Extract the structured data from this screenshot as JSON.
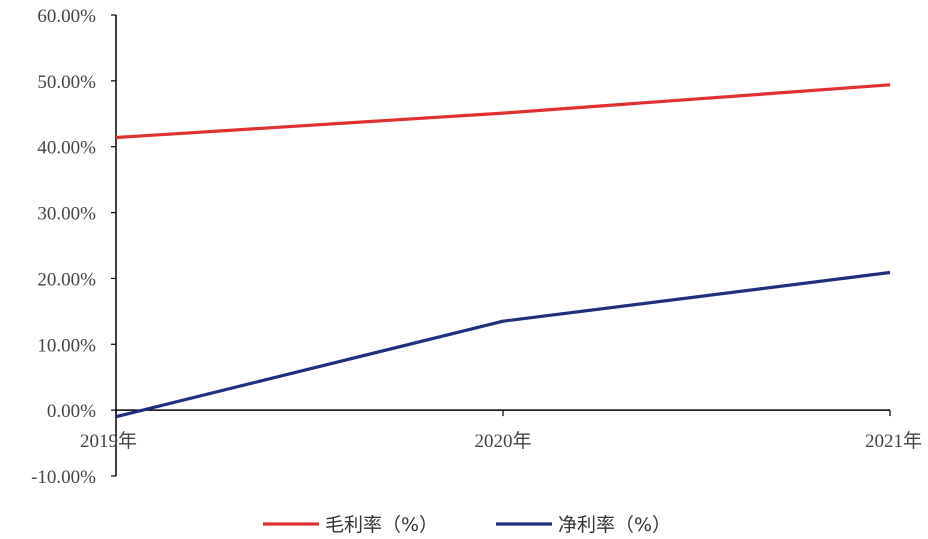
{
  "chart_data": {
    "type": "line",
    "title": "",
    "xlabel": "",
    "ylabel": "",
    "categories": [
      "2019年",
      "2020年",
      "2021年"
    ],
    "ylim": [
      -0.1,
      0.6
    ],
    "y_ticks": [
      -0.1,
      0.0,
      0.1,
      0.2,
      0.3,
      0.4,
      0.5,
      0.6
    ],
    "y_tick_labels": [
      "-10.00%",
      "0.00%",
      "10.00%",
      "20.00%",
      "30.00%",
      "40.00%",
      "50.00%",
      "60.00%"
    ],
    "grid": false,
    "legend_position": "bottom",
    "series": [
      {
        "name": "毛利率（%）",
        "color": "#e03030",
        "values": [
          0.414,
          0.451,
          0.494
        ]
      },
      {
        "name": "净利率（%）",
        "color": "#1f2f7e",
        "values": [
          -0.01,
          0.135,
          0.209
        ]
      }
    ]
  }
}
